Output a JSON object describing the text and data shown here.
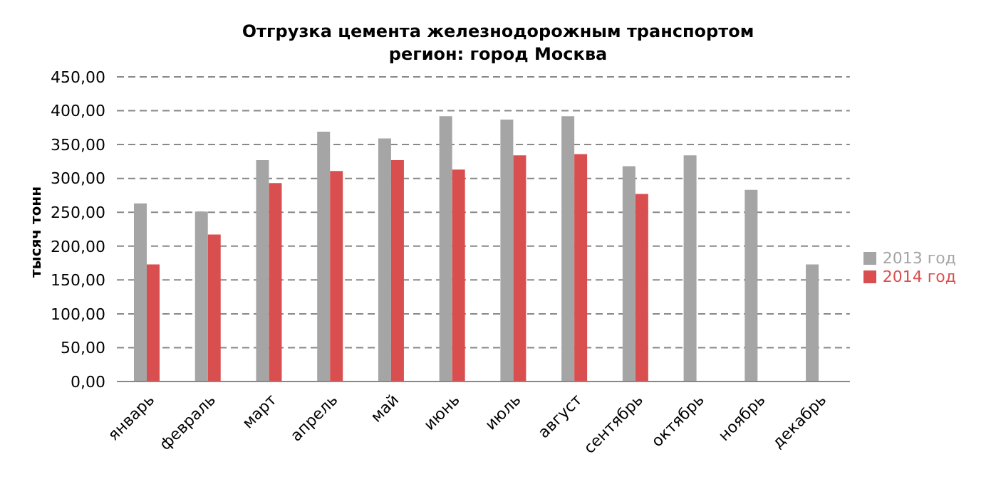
{
  "chart_data": {
    "type": "bar",
    "title": "Отгрузка цемента железнодорожным транспортом\nрегион: город Москва",
    "ylabel": "тысяч тонн",
    "categories": [
      "январь",
      "февраль",
      "март",
      "апрель",
      "май",
      "июнь",
      "июль",
      "август",
      "сентябрь",
      "октябрь",
      "ноябрь",
      "декабрь"
    ],
    "series": [
      {
        "name": "2013 год",
        "color": "#a5a5a5",
        "values": [
          263,
          251,
          327,
          369,
          359,
          392,
          387,
          392,
          318,
          334,
          283,
          173
        ]
      },
      {
        "name": "2014 год",
        "color": "#d94f4f",
        "values": [
          173,
          217,
          293,
          311,
          327,
          313,
          334,
          336,
          277,
          null,
          null,
          null
        ]
      }
    ],
    "ylim": [
      0,
      450
    ],
    "yticks": [
      {
        "value": 0,
        "label": "0,00"
      },
      {
        "value": 50,
        "label": "50,00"
      },
      {
        "value": 100,
        "label": "100,00"
      },
      {
        "value": 150,
        "label": "150,00"
      },
      {
        "value": 200,
        "label": "200,00"
      },
      {
        "value": 250,
        "label": "250,00"
      },
      {
        "value": 300,
        "label": "300,00"
      },
      {
        "value": 350,
        "label": "350,00"
      },
      {
        "value": 400,
        "label": "400,00"
      },
      {
        "value": 450,
        "label": "450,00"
      }
    ],
    "grid": "y",
    "legend": "right"
  }
}
